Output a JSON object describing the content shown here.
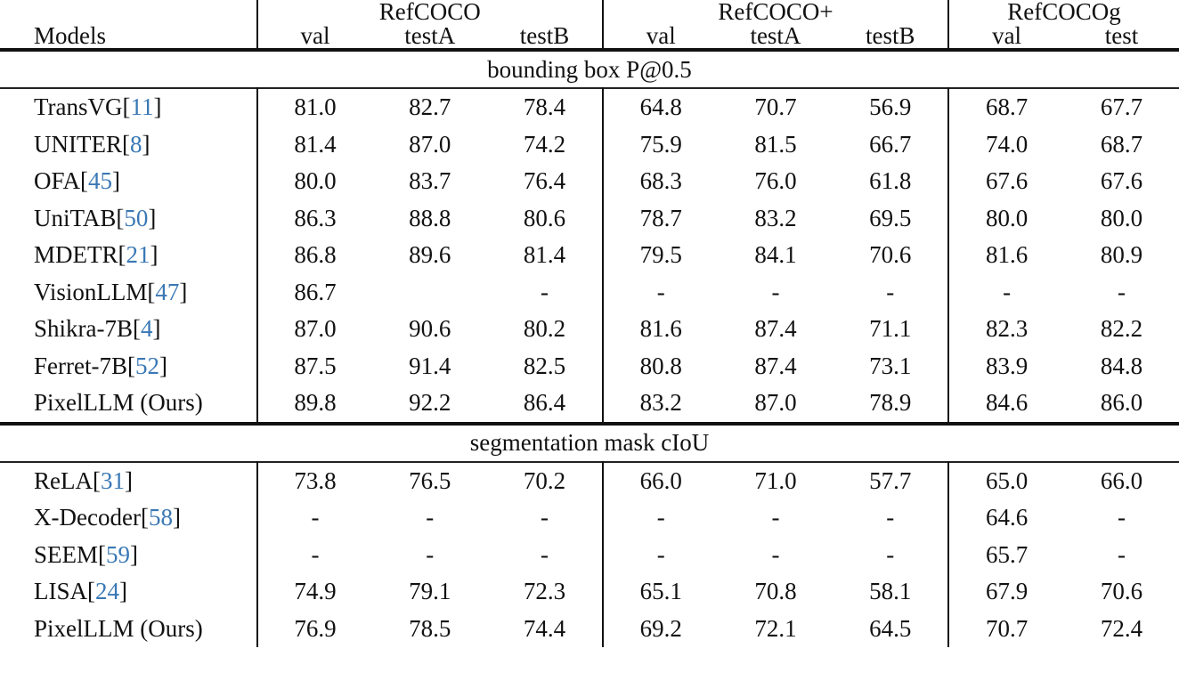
{
  "table": {
    "model_header": "Models",
    "groups": [
      {
        "label": "RefCOCO",
        "splits": [
          "val",
          "testA",
          "testB"
        ]
      },
      {
        "label": "RefCOCO+",
        "splits": [
          "val",
          "testA",
          "testB"
        ]
      },
      {
        "label": "RefCOCOg",
        "splits": [
          "val",
          "test"
        ]
      }
    ],
    "sections": [
      {
        "title": "bounding box P@0.5",
        "rows": [
          {
            "name": "TransVG",
            "ref": "11",
            "values": [
              "81.0",
              "82.7",
              "78.4",
              "64.8",
              "70.7",
              "56.9",
              "68.7",
              "67.7"
            ],
            "bold": []
          },
          {
            "name": "UNITER",
            "ref": "8",
            "values": [
              "81.4",
              "87.0",
              "74.2",
              "75.9",
              "81.5",
              "66.7",
              "74.0",
              "68.7"
            ],
            "bold": []
          },
          {
            "name": "OFA",
            "ref": "45",
            "values": [
              "80.0",
              "83.7",
              "76.4",
              "68.3",
              "76.0",
              "61.8",
              "67.6",
              "67.6"
            ],
            "bold": []
          },
          {
            "name": "UniTAB",
            "ref": "50",
            "values": [
              "86.3",
              "88.8",
              "80.6",
              "78.7",
              "83.2",
              "69.5",
              "80.0",
              "80.0"
            ],
            "bold": []
          },
          {
            "name": "MDETR",
            "ref": "21",
            "values": [
              "86.8",
              "89.6",
              "81.4",
              "79.5",
              "84.1",
              "70.6",
              "81.6",
              "80.9"
            ],
            "bold": []
          },
          {
            "name": "VisionLLM",
            "ref": "47",
            "values": [
              "86.7",
              "",
              "-",
              "-",
              "-",
              "-",
              "-",
              "-"
            ],
            "bold": []
          },
          {
            "name": "Shikra-7B",
            "ref": "4",
            "values": [
              "87.0",
              "90.6",
              "80.2",
              "81.6",
              "87.4",
              "71.1",
              "82.3",
              "82.2"
            ],
            "bold": [
              4
            ]
          },
          {
            "name": "Ferret-7B",
            "ref": "52",
            "values": [
              "87.5",
              "91.4",
              "82.5",
              "80.8",
              "87.4",
              "73.1",
              "83.9",
              "84.8"
            ],
            "bold": [
              4
            ]
          },
          {
            "name": "PixelLLM (Ours)",
            "ref": "",
            "values": [
              "89.8",
              "92.2",
              "86.4",
              "83.2",
              "87.0",
              "78.9",
              "84.6",
              "86.0"
            ],
            "bold": [
              0,
              1,
              2,
              3,
              5,
              6,
              7
            ]
          }
        ]
      },
      {
        "title": "segmentation mask cIoU",
        "rows": [
          {
            "name": "ReLA",
            "ref": "31",
            "values": [
              "73.8",
              "76.5",
              "70.2",
              "66.0",
              "71.0",
              "57.7",
              "65.0",
              "66.0"
            ],
            "bold": []
          },
          {
            "name": "X-Decoder",
            "ref": "58",
            "values": [
              "-",
              "-",
              "-",
              "-",
              "-",
              "-",
              "64.6",
              "-"
            ],
            "bold": []
          },
          {
            "name": "SEEM",
            "ref": "59",
            "values": [
              "-",
              "-",
              "-",
              "-",
              "-",
              "-",
              "65.7",
              "-"
            ],
            "bold": []
          },
          {
            "name": "LISA",
            "ref": "24",
            "values": [
              "74.9",
              "79.1",
              "72.3",
              "65.1",
              "70.8",
              "58.1",
              "67.9",
              "70.6"
            ],
            "bold": [
              1
            ]
          },
          {
            "name": "PixelLLM (Ours)",
            "ref": "",
            "values": [
              "76.9",
              "78.5",
              "74.4",
              "69.2",
              "72.1",
              "64.5",
              "70.7",
              "72.4"
            ],
            "bold": [
              0,
              2,
              3,
              4,
              5,
              6,
              7
            ]
          }
        ]
      }
    ]
  },
  "colors": {
    "text": "#111111",
    "reference_link": "#3a78b5",
    "rule": "#111111"
  }
}
